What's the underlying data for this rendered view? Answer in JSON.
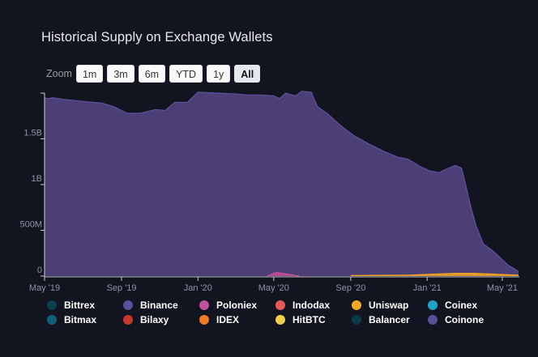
{
  "title": "Historical Supply on Exchange Wallets",
  "zoom": {
    "label": "Zoom",
    "buttons": [
      "1m",
      "3m",
      "6m",
      "YTD",
      "1y",
      "All"
    ],
    "active": "All"
  },
  "colors": {
    "background": "#12141f",
    "area_fill": "#4b3f75",
    "area_line": "#5e52a0",
    "axis": "#c9cad3",
    "tick_text": "#8f93a3"
  },
  "chart_data": {
    "type": "area",
    "title": "Historical Supply on Exchange Wallets",
    "xlabel": "",
    "ylabel": "",
    "x_ticks": [
      "May '19",
      "Sep '19",
      "Jan '20",
      "May '20",
      "Sep '20",
      "Jan '21",
      "May '21"
    ],
    "y_ticks": [
      "0",
      "500M",
      "1B",
      "1.5B"
    ],
    "ylim": [
      0,
      2000000000
    ],
    "xlim": [
      "2019-05-01",
      "2021-05-27"
    ],
    "grid": false,
    "legend_position": "bottom",
    "series": [
      {
        "name": "Binance",
        "color": "#5a4f9a",
        "points": [
          [
            "2019-05-01",
            1950000000.0
          ],
          [
            "2019-05-05",
            1940000000.0
          ],
          [
            "2019-05-15",
            1950000000.0
          ],
          [
            "2019-06-01",
            1930000000.0
          ],
          [
            "2019-07-01",
            1910000000.0
          ],
          [
            "2019-08-01",
            1890000000.0
          ],
          [
            "2019-08-20",
            1850000000.0
          ],
          [
            "2019-09-10",
            1780000000.0
          ],
          [
            "2019-10-01",
            1780000000.0
          ],
          [
            "2019-10-25",
            1820000000.0
          ],
          [
            "2019-11-10",
            1810000000.0
          ],
          [
            "2019-11-25",
            1900000000.0
          ],
          [
            "2019-12-15",
            1900000000.0
          ],
          [
            "2020-01-01",
            2010000000.0
          ],
          [
            "2020-02-01",
            2000000000.0
          ],
          [
            "2020-03-01",
            1990000000.0
          ],
          [
            "2020-03-20",
            1980000000.0
          ],
          [
            "2020-04-10",
            1980000000.0
          ],
          [
            "2020-05-01",
            1970000000.0
          ],
          [
            "2020-05-10",
            1940000000.0
          ],
          [
            "2020-05-20",
            2000000000.0
          ],
          [
            "2020-06-05",
            1970000000.0
          ],
          [
            "2020-06-15",
            2020000000.0
          ],
          [
            "2020-06-30",
            2010000000.0
          ],
          [
            "2020-07-10",
            1850000000.0
          ],
          [
            "2020-07-25",
            1780000000.0
          ],
          [
            "2020-08-15",
            1650000000.0
          ],
          [
            "2020-09-05",
            1540000000.0
          ],
          [
            "2020-10-01",
            1440000000.0
          ],
          [
            "2020-10-25",
            1360000000.0
          ],
          [
            "2020-11-15",
            1300000000.0
          ],
          [
            "2020-12-01",
            1280000000.0
          ],
          [
            "2020-12-20",
            1200000000.0
          ],
          [
            "2021-01-05",
            1150000000.0
          ],
          [
            "2021-01-20",
            1130000000.0
          ],
          [
            "2021-02-01",
            1170000000.0
          ],
          [
            "2021-02-15",
            1210000000.0
          ],
          [
            "2021-02-25",
            1180000000.0
          ],
          [
            "2021-03-05",
            950000000.0
          ],
          [
            "2021-03-12",
            750000000.0
          ],
          [
            "2021-03-20",
            550000000.0
          ],
          [
            "2021-04-01",
            350000000.0
          ],
          [
            "2021-04-15",
            280000000.0
          ],
          [
            "2021-05-01",
            180000000.0
          ],
          [
            "2021-05-10",
            120000000.0
          ],
          [
            "2021-05-20",
            80000000.0
          ],
          [
            "2021-05-27",
            50000000.0
          ]
        ]
      },
      {
        "name": "Uniswap",
        "color": "#f5a623",
        "points": [
          [
            "2020-09-01",
            5000000.0
          ],
          [
            "2020-12-01",
            10000000.0
          ],
          [
            "2021-02-15",
            30000000.0
          ],
          [
            "2021-03-15",
            30000000.0
          ],
          [
            "2021-05-27",
            10000000.0
          ]
        ]
      },
      {
        "name": "Poloniex",
        "color": "#c0509a",
        "points": [
          [
            "2020-04-20",
            0.0
          ],
          [
            "2020-05-05",
            40000000.0
          ],
          [
            "2020-05-25",
            20000000.0
          ],
          [
            "2020-06-10",
            0.0
          ]
        ]
      }
    ],
    "legend": [
      {
        "name": "Bittrex",
        "color": "#0d3f4f"
      },
      {
        "name": "Binance",
        "color": "#5a4f9a"
      },
      {
        "name": "Poloniex",
        "color": "#c0509a"
      },
      {
        "name": "Indodax",
        "color": "#e85a5a"
      },
      {
        "name": "Uniswap",
        "color": "#f5a623"
      },
      {
        "name": "Coinex",
        "color": "#1fa3c6"
      },
      {
        "name": "Bitmax",
        "color": "#11607a"
      },
      {
        "name": "Bilaxy",
        "color": "#c8362e"
      },
      {
        "name": "IDEX",
        "color": "#ee7a2a"
      },
      {
        "name": "HitBTC",
        "color": "#f0cf4a"
      },
      {
        "name": "Balancer",
        "color": "#0a3a4a"
      },
      {
        "name": "Coinone",
        "color": "#5a4f9a"
      }
    ]
  }
}
